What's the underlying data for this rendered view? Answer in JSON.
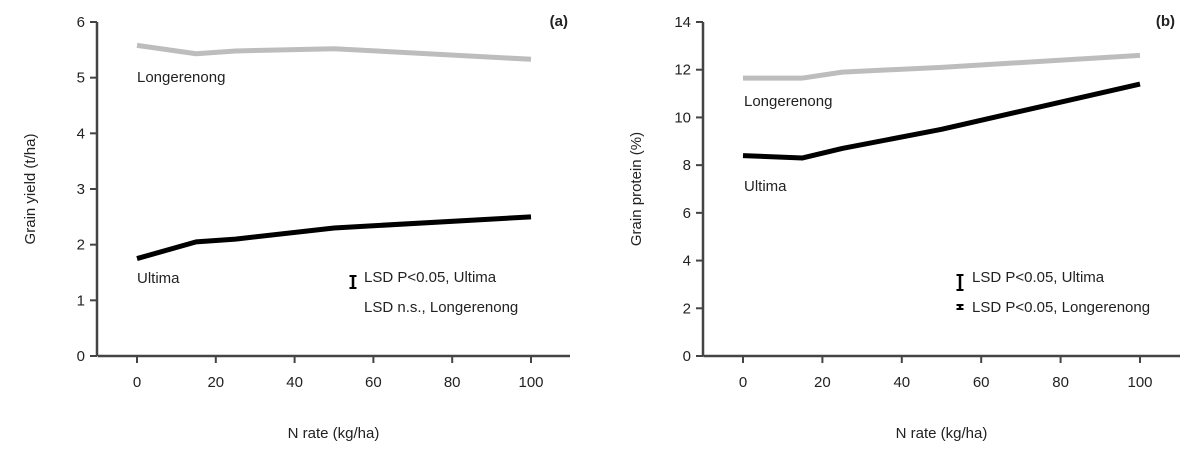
{
  "chart_data": [
    {
      "type": "line",
      "panel_label": "(a)",
      "xlabel": "N rate (kg/ha)",
      "ylabel": "Grain yield (t/ha)",
      "xlim": [
        -10,
        110
      ],
      "ylim": [
        0,
        6
      ],
      "xticks": [
        0,
        20,
        40,
        60,
        80,
        100
      ],
      "yticks": [
        0,
        1,
        2,
        3,
        4,
        5,
        6
      ],
      "grid": false,
      "x": [
        0,
        15,
        25,
        50,
        100
      ],
      "series": [
        {
          "name": "Longerenong",
          "color": "#bdbdbd",
          "values": [
            5.58,
            5.43,
            5.48,
            5.52,
            5.33
          ]
        },
        {
          "name": "Ultima",
          "color": "#000000",
          "values": [
            1.75,
            2.05,
            2.1,
            2.3,
            2.5
          ]
        }
      ],
      "annotations": [
        "LSD P<0.05, Ultima",
        "LSD n.s., Longerenong"
      ]
    },
    {
      "type": "line",
      "panel_label": "(b)",
      "xlabel": "N rate (kg/ha)",
      "ylabel": "Grain protein (%)",
      "xlim": [
        -10,
        110
      ],
      "ylim": [
        0,
        14
      ],
      "xticks": [
        0,
        20,
        40,
        60,
        80,
        100
      ],
      "yticks": [
        0,
        2,
        4,
        6,
        8,
        10,
        12,
        14
      ],
      "grid": false,
      "x": [
        0,
        15,
        25,
        50,
        100
      ],
      "series": [
        {
          "name": "Longerenong",
          "color": "#bdbdbd",
          "values": [
            11.65,
            11.65,
            11.9,
            12.1,
            12.6
          ]
        },
        {
          "name": "Ultima",
          "color": "#000000",
          "values": [
            8.4,
            8.3,
            8.7,
            9.5,
            11.4
          ]
        }
      ],
      "annotations": [
        "LSD P<0.05, Ultima",
        "LSD P<0.05, Longerenong"
      ]
    }
  ]
}
